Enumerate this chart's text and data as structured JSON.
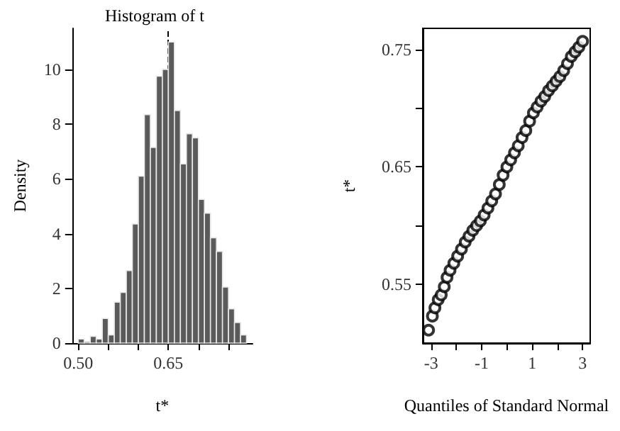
{
  "chart_data": [
    {
      "type": "histogram",
      "title": "Histogram of t",
      "xlabel": "t*",
      "ylabel": "Density",
      "color": "#5a5a5a",
      "bins": [
        0.5,
        0.51,
        0.52,
        0.53,
        0.54,
        0.55,
        0.56,
        0.57,
        0.58,
        0.59,
        0.6,
        0.61,
        0.62,
        0.63,
        0.64,
        0.65,
        0.66,
        0.67,
        0.68,
        0.69,
        0.7,
        0.71,
        0.72,
        0.73,
        0.74,
        0.75,
        0.76,
        0.77,
        0.78
      ],
      "values": [
        0.15,
        0.05,
        0.25,
        0.15,
        0.9,
        0.3,
        1.5,
        1.85,
        2.65,
        4.35,
        6.1,
        8.35,
        7.15,
        9.75,
        10.0,
        11.0,
        8.5,
        6.55,
        7.65,
        7.5,
        5.25,
        4.75,
        3.85,
        3.35,
        2.05,
        1.25,
        0.75,
        0.3
      ],
      "xlim": [
        0.49,
        0.79
      ],
      "xticks": [
        {
          "value": 0.5,
          "label": "0.50"
        },
        {
          "value": 0.55,
          "label": null
        },
        {
          "value": 0.6,
          "label": null
        },
        {
          "value": 0.65,
          "label": "0.65"
        },
        {
          "value": 0.7,
          "label": null
        },
        {
          "value": 0.75,
          "label": null
        }
      ],
      "ylim": [
        0,
        11.5
      ],
      "yticks": [
        0,
        2,
        4,
        6,
        8,
        10
      ],
      "ref_lines": [
        {
          "axis": "x",
          "value": 0.65,
          "line_style": "dashed",
          "color": "#000000"
        }
      ],
      "grid": false
    },
    {
      "type": "scatter",
      "xlabel": "Quantiles of Standard Normal",
      "ylabel": "t*",
      "marker": "circle",
      "grid": false,
      "series": [
        {
          "color": "#000000",
          "x": [
            -3.1,
            -2.95,
            -2.85,
            -2.72,
            -2.6,
            -2.48,
            -2.37,
            -2.25,
            -2.1,
            -1.95,
            -1.8,
            -1.65,
            -1.5,
            -1.35,
            -1.2,
            -1.05,
            -0.9,
            -0.75,
            -0.6,
            -0.45,
            -0.3,
            -0.15,
            0,
            0.15,
            0.3,
            0.45,
            0.6,
            0.75,
            0.9,
            1.05,
            1.2,
            1.35,
            1.5,
            1.65,
            1.8,
            1.95,
            2.1,
            2.25,
            2.4,
            2.55,
            2.7,
            2.85,
            3.0
          ],
          "values": [
            0.511,
            0.523,
            0.53,
            0.537,
            0.541,
            0.548,
            0.556,
            0.562,
            0.568,
            0.574,
            0.58,
            0.586,
            0.591,
            0.596,
            0.6,
            0.604,
            0.609,
            0.615,
            0.621,
            0.627,
            0.635,
            0.643,
            0.65,
            0.656,
            0.662,
            0.668,
            0.675,
            0.681,
            0.689,
            0.696,
            0.701,
            0.706,
            0.71,
            0.715,
            0.719,
            0.723,
            0.727,
            0.732,
            0.738,
            0.744,
            0.748,
            0.752,
            0.757
          ]
        }
      ],
      "xlim": [
        -3.33,
        3.3
      ],
      "xticks": [
        -3,
        {
          "value": -2,
          "label": null
        },
        -1,
        {
          "value": 0,
          "label": null
        },
        1,
        {
          "value": 2,
          "label": null
        },
        3
      ],
      "ylim": [
        0.5,
        0.768
      ],
      "yticks": [
        0.55,
        {
          "value": 0.6,
          "label": null
        },
        0.65,
        {
          "value": 0.7,
          "label": null
        },
        0.75
      ]
    }
  ]
}
